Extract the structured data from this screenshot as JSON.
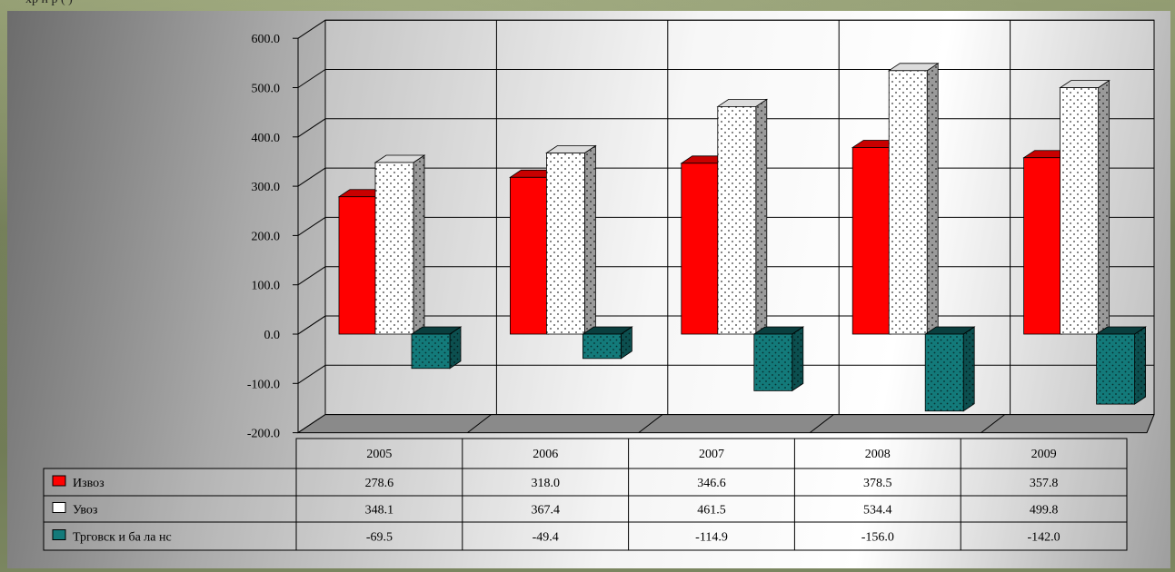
{
  "caption": "хр  н  р      (   )",
  "colors": {
    "export": "#ff0000",
    "import": "#ffffff",
    "balance": "#137a7a",
    "wall_grid": "#000000"
  },
  "chart_data": {
    "type": "bar",
    "title": "",
    "categories": [
      "2005",
      "2006",
      "2007",
      "2008",
      "2009"
    ],
    "series": [
      {
        "name": "Извоз",
        "values": [
          278.6,
          318.0,
          346.6,
          378.5,
          357.8
        ],
        "pattern": "solid",
        "color": "#ff0000"
      },
      {
        "name": "Увоз",
        "values": [
          348.1,
          367.4,
          461.5,
          534.4,
          499.8
        ],
        "pattern": "dotted",
        "color": "#ffffff"
      },
      {
        "name": "Трговск и ба ла нс",
        "values": [
          -69.5,
          -49.4,
          -114.9,
          -156.0,
          -142.0
        ],
        "pattern": "dotted",
        "color": "#137a7a"
      }
    ],
    "y_ticks": [
      "600.0",
      "500.0",
      "400.0",
      "300.0",
      "200.0",
      "100.0",
      "0.0",
      "-100.0",
      "-200.0"
    ],
    "ylim": [
      -200,
      600
    ],
    "grid": true,
    "legend": "data-table-bottom",
    "table": {
      "rows": [
        {
          "label": "Извоз",
          "cells": [
            "278.6",
            "318.0",
            "346.6",
            "378.5",
            "357.8"
          ]
        },
        {
          "label": "Увоз",
          "cells": [
            "348.1",
            "367.4",
            "461.5",
            "534.4",
            "499.8"
          ]
        },
        {
          "label": "Трговск и ба ла нс",
          "cells": [
            "-69.5",
            "-49.4",
            "-114.9",
            "-156.0",
            "-142.0"
          ]
        }
      ]
    }
  }
}
